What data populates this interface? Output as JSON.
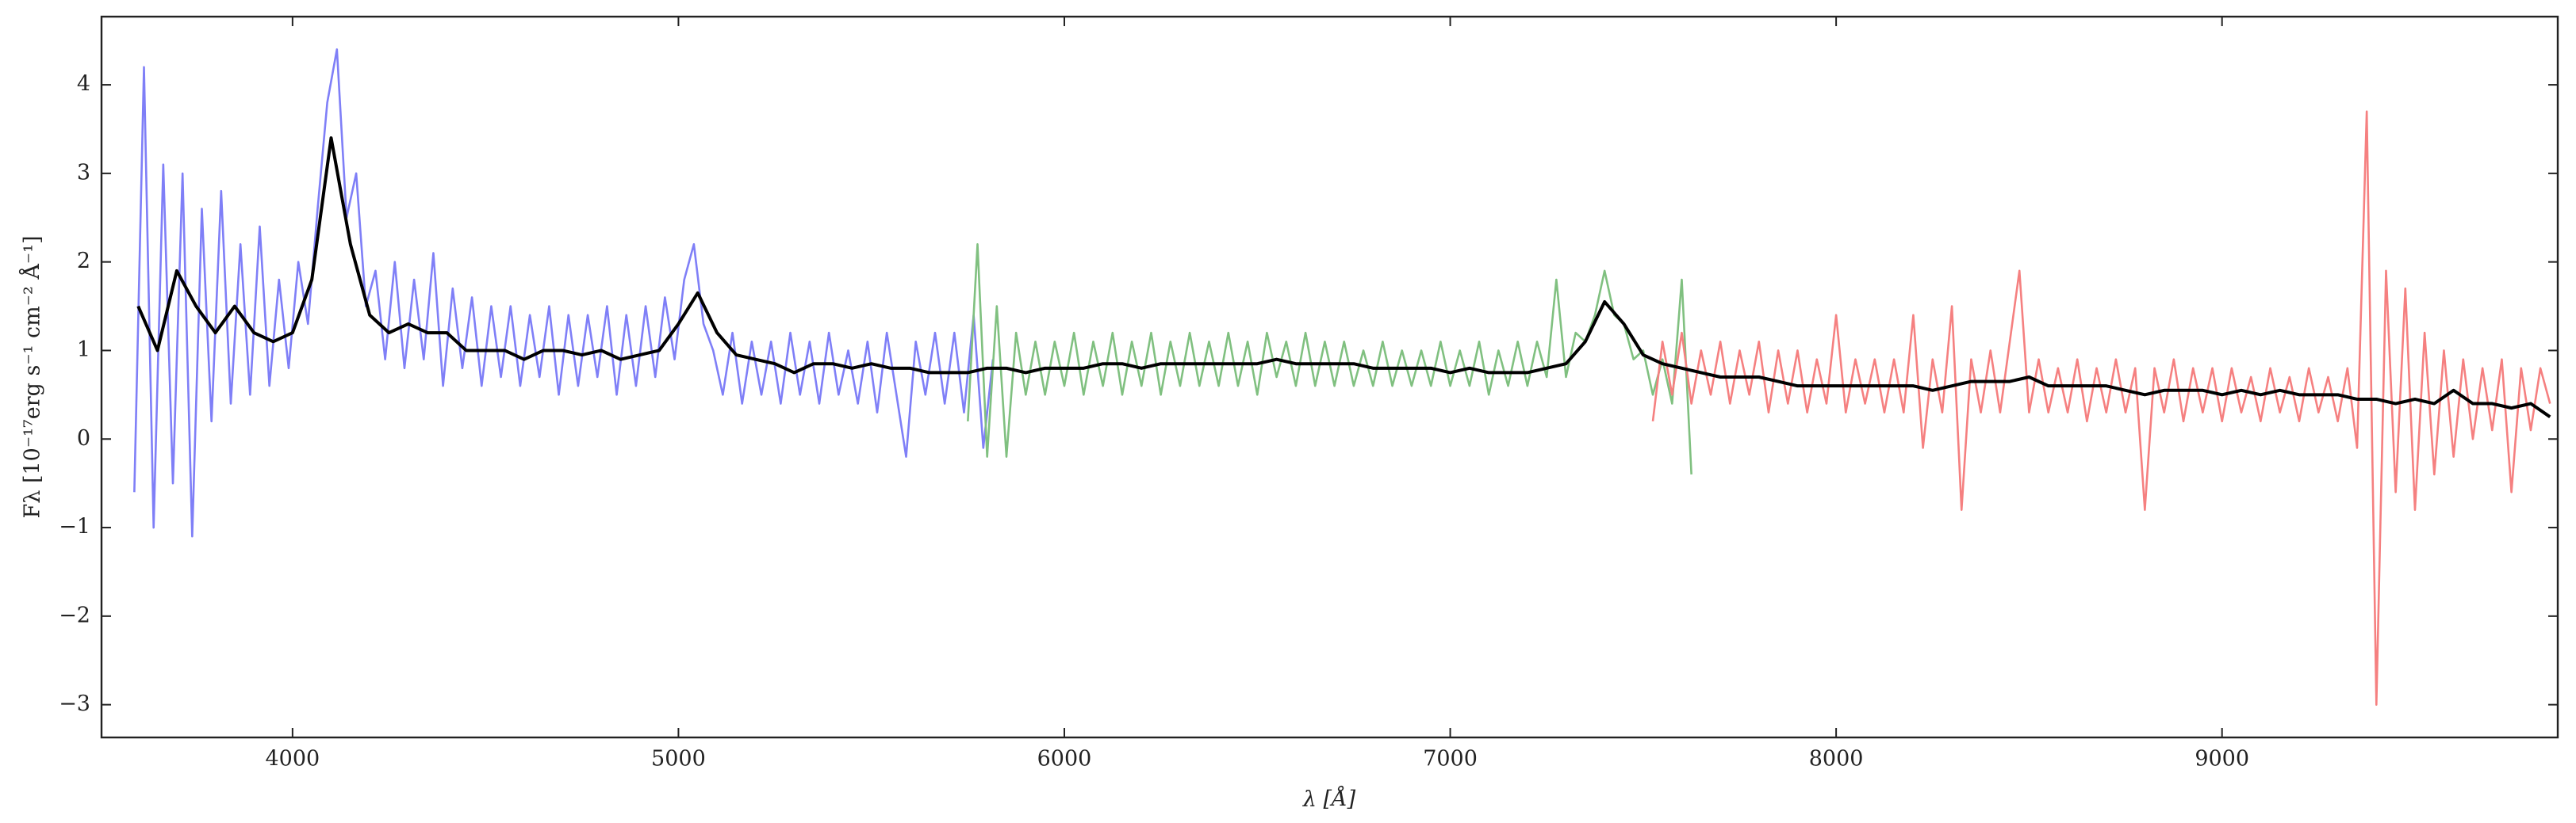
{
  "chart_data": {
    "type": "line",
    "x_label": "λ [Å]",
    "y_label": "Fλ [10⁻¹⁷erg s⁻¹ cm⁻² Å⁻¹]",
    "xlim": [
      3505,
      9870
    ],
    "ylim": [
      -3.37,
      4.77
    ],
    "xticks": [
      4000,
      5000,
      6000,
      7000,
      8000,
      9000
    ],
    "yticks": [
      {
        "value": -3,
        "label": "−3"
      },
      {
        "value": -2,
        "label": "−2"
      },
      {
        "value": -1,
        "label": "−1"
      },
      0,
      1,
      2,
      3,
      4
    ],
    "series": [
      {
        "color": "#7f7ff7",
        "x": [
          3590,
          3615,
          3640,
          3665,
          3690,
          3715,
          3740,
          3765,
          3790,
          3815,
          3840,
          3865,
          3890,
          3915,
          3940,
          3965,
          3990,
          4015,
          4040,
          4065,
          4090,
          4115,
          4140,
          4165,
          4190,
          4215,
          4240,
          4265,
          4290,
          4315,
          4340,
          4365,
          4390,
          4415,
          4440,
          4465,
          4490,
          4515,
          4540,
          4565,
          4590,
          4615,
          4640,
          4665,
          4690,
          4715,
          4740,
          4765,
          4790,
          4815,
          4840,
          4865,
          4890,
          4915,
          4940,
          4965,
          4990,
          5015,
          5040,
          5065,
          5090,
          5115,
          5140,
          5165,
          5190,
          5215,
          5240,
          5265,
          5290,
          5315,
          5340,
          5365,
          5390,
          5415,
          5440,
          5465,
          5490,
          5515,
          5540,
          5565,
          5590,
          5615,
          5640,
          5665,
          5690,
          5715,
          5740,
          5765,
          5790,
          5815
        ],
        "values": [
          -0.6,
          4.2,
          -1.0,
          3.1,
          -0.5,
          3.0,
          -1.1,
          2.6,
          0.2,
          2.8,
          0.4,
          2.2,
          0.5,
          2.4,
          0.6,
          1.8,
          0.8,
          2.0,
          1.3,
          2.6,
          3.8,
          4.4,
          2.5,
          3.0,
          1.5,
          1.9,
          0.9,
          2.0,
          0.8,
          1.8,
          0.9,
          2.1,
          0.6,
          1.7,
          0.8,
          1.6,
          0.6,
          1.5,
          0.7,
          1.5,
          0.6,
          1.4,
          0.7,
          1.5,
          0.5,
          1.4,
          0.6,
          1.4,
          0.7,
          1.5,
          0.5,
          1.4,
          0.6,
          1.5,
          0.7,
          1.6,
          0.9,
          1.8,
          2.2,
          1.3,
          1.0,
          0.5,
          1.2,
          0.4,
          1.1,
          0.5,
          1.1,
          0.4,
          1.2,
          0.5,
          1.1,
          0.4,
          1.2,
          0.5,
          1.0,
          0.4,
          1.1,
          0.3,
          1.2,
          0.5,
          -0.2,
          1.1,
          0.5,
          1.2,
          0.4,
          1.2,
          0.3,
          1.4,
          -0.1,
          0.9
        ]
      },
      {
        "color": "#80c080",
        "x": [
          5750,
          5775,
          5800,
          5825,
          5850,
          5875,
          5900,
          5925,
          5950,
          5975,
          6000,
          6025,
          6050,
          6075,
          6100,
          6125,
          6150,
          6175,
          6200,
          6225,
          6250,
          6275,
          6300,
          6325,
          6350,
          6375,
          6400,
          6425,
          6450,
          6475,
          6500,
          6525,
          6550,
          6575,
          6600,
          6625,
          6650,
          6675,
          6700,
          6725,
          6750,
          6775,
          6800,
          6825,
          6850,
          6875,
          6900,
          6925,
          6950,
          6975,
          7000,
          7025,
          7050,
          7075,
          7100,
          7125,
          7150,
          7175,
          7200,
          7225,
          7250,
          7275,
          7300,
          7325,
          7350,
          7375,
          7400,
          7425,
          7450,
          7475,
          7500,
          7525,
          7550,
          7575,
          7600,
          7625
        ],
        "values": [
          0.2,
          2.2,
          -0.2,
          1.5,
          -0.2,
          1.2,
          0.5,
          1.1,
          0.5,
          1.1,
          0.6,
          1.2,
          0.5,
          1.1,
          0.6,
          1.2,
          0.5,
          1.1,
          0.6,
          1.2,
          0.5,
          1.1,
          0.6,
          1.2,
          0.6,
          1.1,
          0.6,
          1.2,
          0.6,
          1.1,
          0.5,
          1.2,
          0.7,
          1.1,
          0.6,
          1.2,
          0.6,
          1.1,
          0.6,
          1.1,
          0.6,
          1.0,
          0.6,
          1.1,
          0.6,
          1.0,
          0.6,
          1.0,
          0.6,
          1.1,
          0.6,
          1.0,
          0.6,
          1.1,
          0.5,
          1.0,
          0.6,
          1.1,
          0.6,
          1.1,
          0.7,
          1.8,
          0.7,
          1.2,
          1.1,
          1.4,
          1.9,
          1.4,
          1.3,
          0.9,
          1.0,
          0.5,
          0.9,
          0.4,
          1.8,
          -0.4
        ]
      },
      {
        "color": "#f58080",
        "x": [
          7525,
          7550,
          7575,
          7600,
          7625,
          7650,
          7675,
          7700,
          7725,
          7750,
          7775,
          7800,
          7825,
          7850,
          7875,
          7900,
          7925,
          7950,
          7975,
          8000,
          8025,
          8050,
          8075,
          8100,
          8125,
          8150,
          8175,
          8200,
          8225,
          8250,
          8275,
          8300,
          8325,
          8350,
          8375,
          8400,
          8425,
          8450,
          8475,
          8500,
          8525,
          8550,
          8575,
          8600,
          8625,
          8650,
          8675,
          8700,
          8725,
          8750,
          8775,
          8800,
          8825,
          8850,
          8875,
          8900,
          8925,
          8950,
          8975,
          9000,
          9025,
          9050,
          9075,
          9100,
          9125,
          9150,
          9175,
          9200,
          9225,
          9250,
          9275,
          9300,
          9325,
          9350,
          9375,
          9400,
          9425,
          9450,
          9475,
          9500,
          9525,
          9550,
          9575,
          9600,
          9625,
          9650,
          9675,
          9700,
          9725,
          9750,
          9775,
          9800,
          9825,
          9850
        ],
        "values": [
          0.2,
          1.1,
          0.5,
          1.2,
          0.4,
          1.0,
          0.5,
          1.1,
          0.4,
          1.0,
          0.5,
          1.1,
          0.3,
          1.0,
          0.4,
          1.0,
          0.3,
          0.9,
          0.4,
          1.4,
          0.3,
          0.9,
          0.4,
          0.9,
          0.3,
          0.9,
          0.3,
          1.4,
          -0.1,
          0.9,
          0.3,
          1.5,
          -0.8,
          0.9,
          0.3,
          1.0,
          0.3,
          1.1,
          1.9,
          0.3,
          0.9,
          0.3,
          0.8,
          0.3,
          0.9,
          0.2,
          0.8,
          0.3,
          0.9,
          0.3,
          0.8,
          -0.8,
          0.8,
          0.3,
          0.9,
          0.2,
          0.8,
          0.3,
          0.8,
          0.2,
          0.8,
          0.3,
          0.7,
          0.2,
          0.8,
          0.3,
          0.7,
          0.2,
          0.8,
          0.3,
          0.7,
          0.2,
          0.8,
          -0.1,
          3.7,
          -3.0,
          1.9,
          -0.6,
          1.7,
          -0.8,
          1.2,
          -0.4,
          1.0,
          -0.2,
          0.9,
          0.0,
          0.8,
          0.1,
          0.9,
          -0.6,
          0.8,
          0.1,
          0.8,
          0.4
        ]
      },
      {
        "color": "#000000",
        "x": [
          3600,
          3650,
          3700,
          3750,
          3800,
          3850,
          3900,
          3950,
          4000,
          4050,
          4100,
          4150,
          4200,
          4250,
          4300,
          4350,
          4400,
          4450,
          4500,
          4550,
          4600,
          4650,
          4700,
          4750,
          4800,
          4850,
          4900,
          4950,
          5000,
          5050,
          5100,
          5150,
          5200,
          5250,
          5300,
          5350,
          5400,
          5450,
          5500,
          5550,
          5600,
          5650,
          5700,
          5750,
          5800,
          5850,
          5900,
          5950,
          6000,
          6050,
          6100,
          6150,
          6200,
          6250,
          6300,
          6350,
          6400,
          6450,
          6500,
          6550,
          6600,
          6650,
          6700,
          6750,
          6800,
          6850,
          6900,
          6950,
          7000,
          7050,
          7100,
          7150,
          7200,
          7250,
          7300,
          7350,
          7400,
          7450,
          7500,
          7550,
          7600,
          7650,
          7700,
          7750,
          7800,
          7850,
          7900,
          7950,
          8000,
          8050,
          8100,
          8150,
          8200,
          8250,
          8300,
          8350,
          8400,
          8450,
          8500,
          8550,
          8600,
          8650,
          8700,
          8750,
          8800,
          8850,
          8900,
          8950,
          9000,
          9050,
          9100,
          9150,
          9200,
          9250,
          9300,
          9350,
          9400,
          9450,
          9500,
          9550,
          9600,
          9650,
          9700,
          9750,
          9800,
          9850
        ],
        "values": [
          1.5,
          1.0,
          1.9,
          1.5,
          1.2,
          1.5,
          1.2,
          1.1,
          1.2,
          1.8,
          3.4,
          2.2,
          1.4,
          1.2,
          1.3,
          1.2,
          1.2,
          1.0,
          1.0,
          1.0,
          0.9,
          1.0,
          1.0,
          0.95,
          1.0,
          0.9,
          0.95,
          1.0,
          1.3,
          1.65,
          1.2,
          0.95,
          0.9,
          0.85,
          0.75,
          0.85,
          0.85,
          0.8,
          0.85,
          0.8,
          0.8,
          0.75,
          0.75,
          0.75,
          0.8,
          0.8,
          0.75,
          0.8,
          0.8,
          0.8,
          0.85,
          0.85,
          0.8,
          0.85,
          0.85,
          0.85,
          0.85,
          0.85,
          0.85,
          0.9,
          0.85,
          0.85,
          0.85,
          0.85,
          0.8,
          0.8,
          0.8,
          0.8,
          0.75,
          0.8,
          0.75,
          0.75,
          0.75,
          0.8,
          0.85,
          1.1,
          1.55,
          1.3,
          0.95,
          0.85,
          0.8,
          0.75,
          0.7,
          0.7,
          0.7,
          0.65,
          0.6,
          0.6,
          0.6,
          0.6,
          0.6,
          0.6,
          0.6,
          0.55,
          0.6,
          0.65,
          0.65,
          0.65,
          0.7,
          0.6,
          0.6,
          0.6,
          0.6,
          0.55,
          0.5,
          0.55,
          0.55,
          0.55,
          0.5,
          0.55,
          0.5,
          0.55,
          0.5,
          0.5,
          0.5,
          0.45,
          0.45,
          0.4,
          0.45,
          0.4,
          0.55,
          0.4,
          0.4,
          0.35,
          0.4,
          0.25
        ]
      }
    ]
  }
}
